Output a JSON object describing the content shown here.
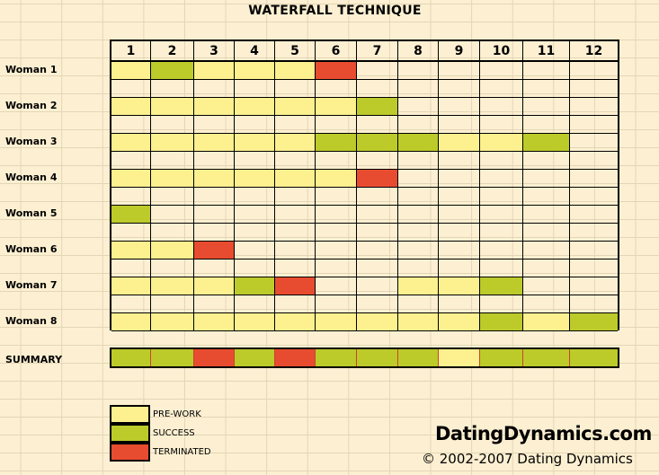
{
  "title": "WATERFALL TECHNIQUE",
  "columns": [
    "1",
    "2",
    "3",
    "4",
    "5",
    "6",
    "7",
    "8",
    "9",
    "10",
    "11",
    "12"
  ],
  "colors": {
    "prework": "#fdf08f",
    "success": "#bccb2a",
    "terminated": "#e84c30",
    "empty": "#fdf0d2"
  },
  "rows": [
    {
      "label": "Woman 1",
      "cells": [
        "P",
        "S",
        "P",
        "P",
        "P",
        "T",
        "",
        "",
        "",
        "",
        "",
        ""
      ]
    },
    {
      "label": "Woman 2",
      "cells": [
        "P",
        "P",
        "P",
        "P",
        "P",
        "P",
        "S",
        "",
        "",
        "",
        "",
        ""
      ]
    },
    {
      "label": "Woman 3",
      "cells": [
        "P",
        "P",
        "P",
        "P",
        "P",
        "S",
        "S",
        "S",
        "P",
        "P",
        "S",
        ""
      ]
    },
    {
      "label": "Woman 4",
      "cells": [
        "P",
        "P",
        "P",
        "P",
        "P",
        "P",
        "T",
        "",
        "",
        "",
        "",
        ""
      ]
    },
    {
      "label": "Woman 5",
      "cells": [
        "S",
        "",
        "",
        "",
        "",
        "",
        "",
        "",
        "",
        "",
        "",
        ""
      ]
    },
    {
      "label": "Woman 6",
      "cells": [
        "P",
        "P",
        "T",
        "",
        "",
        "",
        "",
        "",
        "",
        "",
        "",
        ""
      ]
    },
    {
      "label": "Woman 7",
      "cells": [
        "P",
        "P",
        "P",
        "S",
        "T",
        "",
        "",
        "P",
        "P",
        "S",
        "",
        ""
      ]
    },
    {
      "label": "Woman 8",
      "cells": [
        "P",
        "P",
        "P",
        "P",
        "P",
        "P",
        "P",
        "P",
        "P",
        "S",
        "P",
        "S"
      ]
    }
  ],
  "summary": {
    "label": "SUMMARY",
    "cells": [
      "S",
      "S",
      "T",
      "S",
      "T",
      "S",
      "S",
      "S",
      "P",
      "S",
      "S",
      "S"
    ]
  },
  "legend": [
    {
      "key": "P",
      "label": "PRE-WORK"
    },
    {
      "key": "S",
      "label": "SUCCESS"
    },
    {
      "key": "T",
      "label": "TERMINATED"
    }
  ],
  "brand": "DatingDynamics.com",
  "copyright": "© 2002-2007 Dating Dynamics"
}
